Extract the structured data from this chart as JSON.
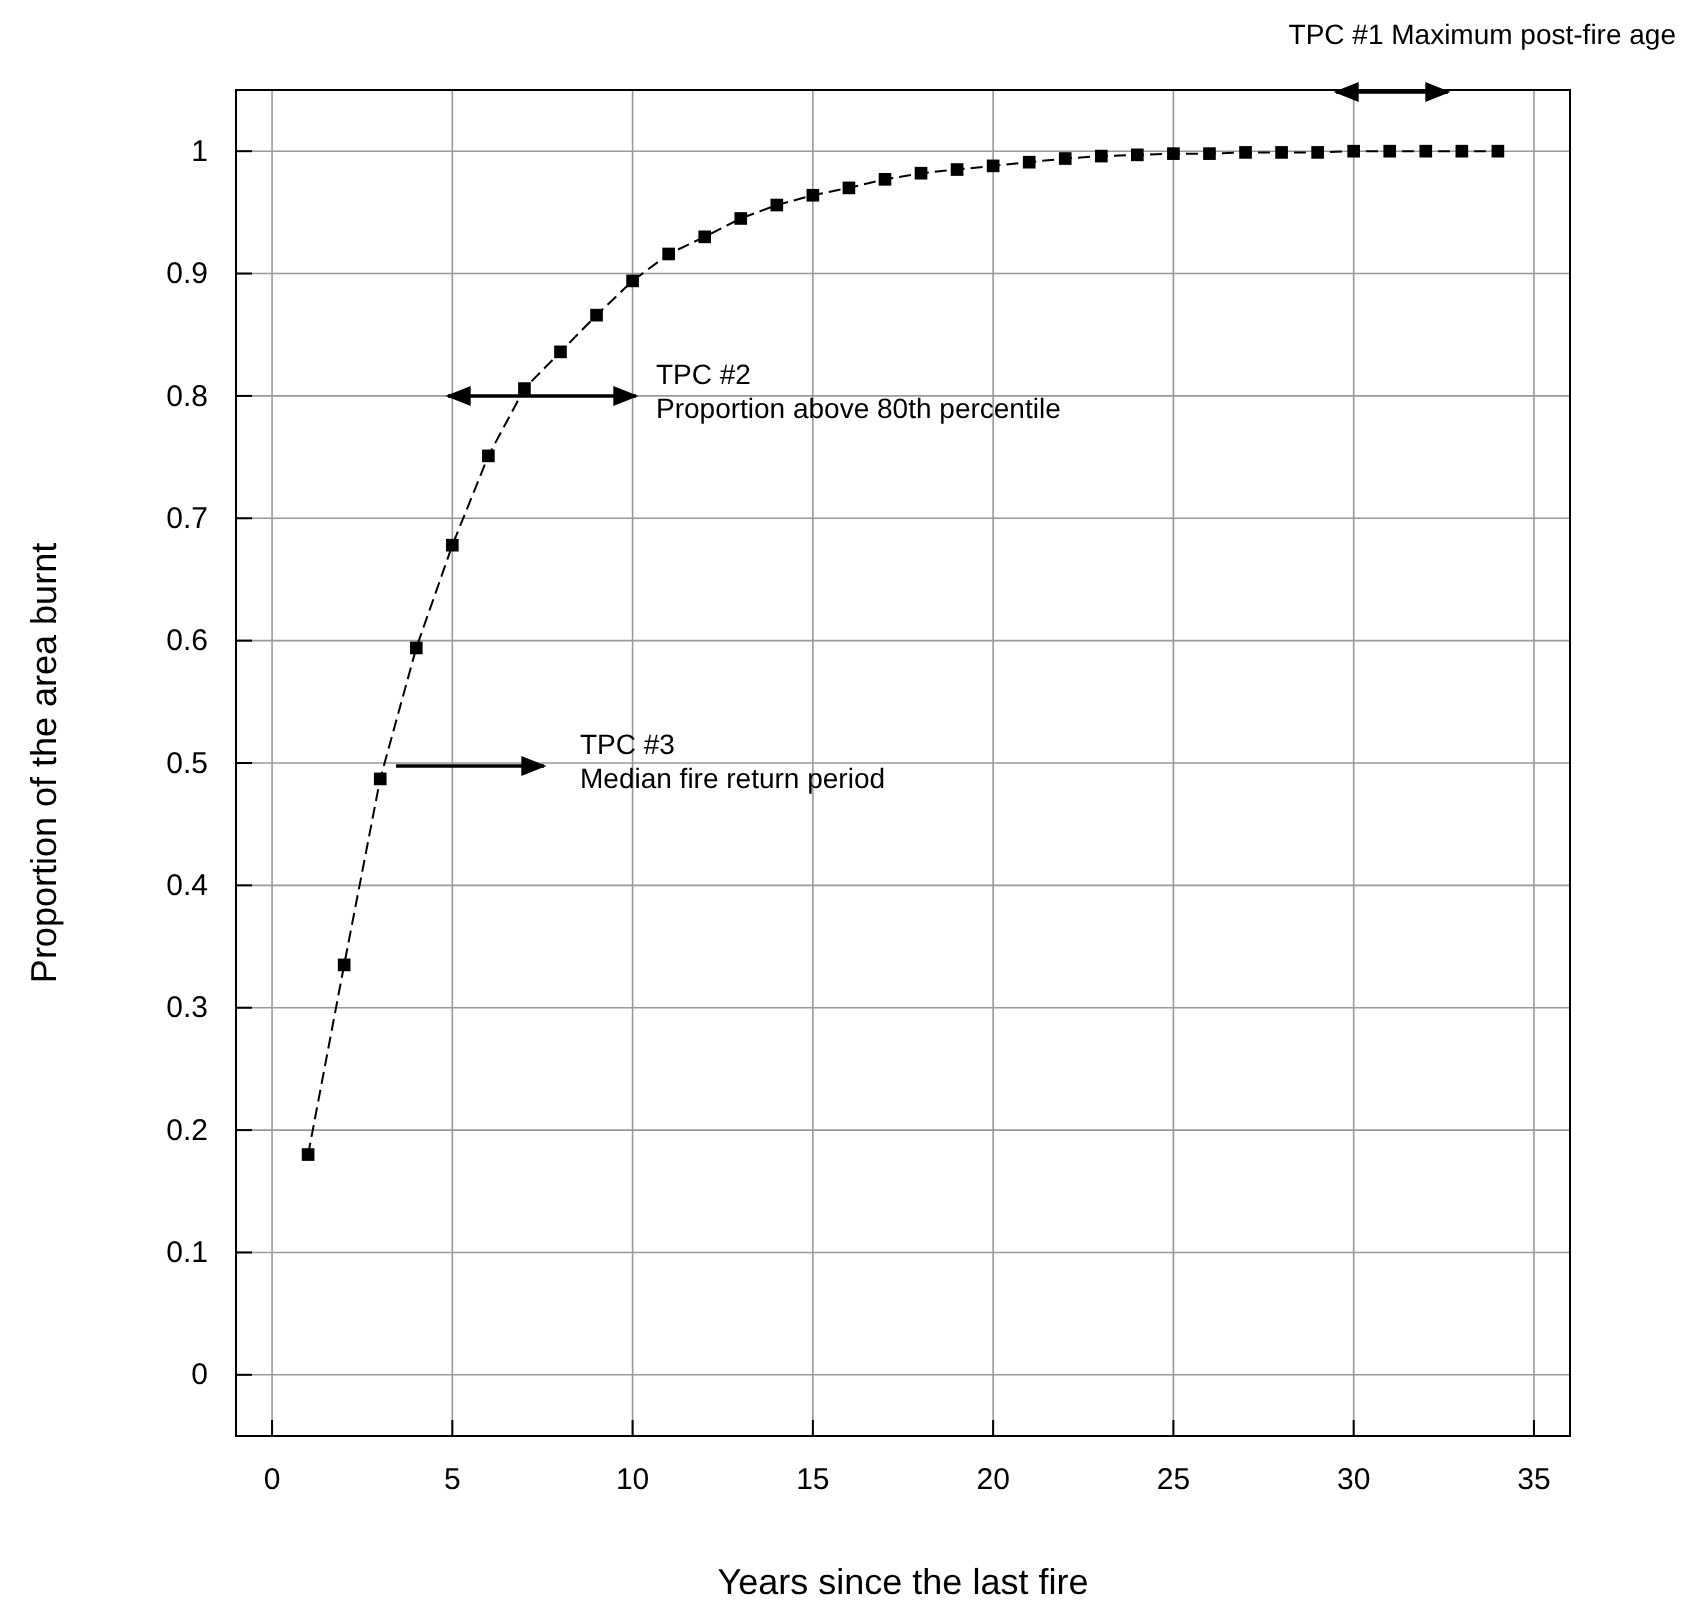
{
  "chart_data": {
    "type": "line",
    "xlabel": "Years since the last fire",
    "ylabel": "Proportion of the area burnt",
    "x": [
      1,
      2,
      3,
      4,
      5,
      6,
      7,
      8,
      9,
      10,
      11,
      12,
      13,
      14,
      15,
      16,
      17,
      18,
      19,
      20,
      21,
      22,
      23,
      24,
      25,
      26,
      27,
      28,
      29,
      30,
      31,
      32,
      33,
      34
    ],
    "series": [
      {
        "color": "#000000",
        "values": [
          0.18,
          0.335,
          0.487,
          0.594,
          0.678,
          0.751,
          0.806,
          0.836,
          0.866,
          0.894,
          0.916,
          0.93,
          0.945,
          0.956,
          0.964,
          0.97,
          0.977,
          0.982,
          0.985,
          0.988,
          0.991,
          0.994,
          0.996,
          0.997,
          0.998,
          0.998,
          0.999,
          0.999,
          0.999,
          1.0,
          1.0,
          1.0,
          1.0,
          1.0
        ]
      }
    ],
    "xlim": [
      -1,
      36
    ],
    "xticks": [
      0,
      5,
      10,
      15,
      20,
      25,
      30,
      35
    ],
    "ylim": [
      -0.05,
      1.05
    ],
    "yticks": [
      0,
      0.1,
      0.2,
      0.3,
      0.4,
      0.5,
      0.6,
      0.7,
      0.8,
      0.9,
      1
    ],
    "grid": true,
    "marker": "square",
    "line_style": "dashed",
    "annotations": [
      "TPC #1 Maximum post-fire age",
      "TPC #2\nProportion above 80th percentile",
      "TPC #3\nMedian fire return period"
    ]
  }
}
